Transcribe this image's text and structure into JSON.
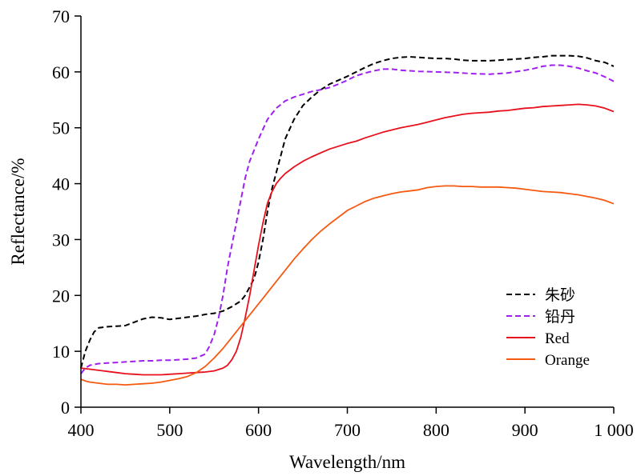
{
  "chart_data": {
    "type": "line",
    "title": "",
    "xlabel": "Wavelength/nm",
    "ylabel": "Reflectance/%",
    "xlim": [
      400,
      1000
    ],
    "ylim": [
      0,
      70
    ],
    "xticks": [
      400,
      500,
      600,
      700,
      800,
      900,
      1000
    ],
    "xtick_labels": [
      "400",
      "500",
      "600",
      "700",
      "800",
      "900",
      "1 000"
    ],
    "yticks": [
      0,
      10,
      20,
      30,
      40,
      50,
      60,
      70
    ],
    "ytick_labels": [
      "0",
      "10",
      "20",
      "30",
      "40",
      "50",
      "60",
      "70"
    ],
    "grid": false,
    "legend_position": "lower-right",
    "series": [
      {
        "name": "朱砂",
        "color": "#000000",
        "dash": "dashed",
        "x": [
          400,
          405,
          410,
          415,
          420,
          430,
          440,
          450,
          460,
          470,
          480,
          490,
          500,
          510,
          520,
          530,
          540,
          550,
          560,
          570,
          580,
          585,
          590,
          595,
          600,
          605,
          610,
          615,
          620,
          625,
          630,
          640,
          650,
          660,
          670,
          680,
          690,
          700,
          710,
          720,
          730,
          740,
          750,
          760,
          770,
          780,
          790,
          800,
          810,
          820,
          830,
          840,
          850,
          860,
          870,
          880,
          890,
          900,
          910,
          920,
          930,
          940,
          950,
          960,
          970,
          980,
          990,
          1000
        ],
        "y": [
          7,
          10,
          12,
          13.5,
          14.2,
          14.4,
          14.5,
          14.6,
          15.2,
          15.8,
          16.1,
          16,
          15.7,
          15.9,
          16.1,
          16.3,
          16.6,
          16.8,
          17.2,
          18,
          19,
          20,
          21.5,
          23,
          26,
          30,
          35,
          39,
          42,
          45,
          48,
          51.5,
          54,
          55.5,
          56.8,
          57.8,
          58.5,
          59.2,
          60,
          60.8,
          61.5,
          62,
          62.4,
          62.6,
          62.7,
          62.6,
          62.5,
          62.4,
          62.4,
          62.3,
          62.1,
          62,
          62,
          62,
          62.1,
          62.2,
          62.3,
          62.4,
          62.6,
          62.7,
          62.9,
          62.9,
          62.9,
          62.8,
          62.5,
          62,
          61.7,
          61
        ]
      },
      {
        "name": "铅丹",
        "color": "#a020f0",
        "dash": "dashed",
        "x": [
          400,
          405,
          410,
          420,
          430,
          440,
          450,
          460,
          470,
          480,
          490,
          500,
          510,
          520,
          530,
          540,
          545,
          550,
          555,
          560,
          565,
          570,
          575,
          580,
          585,
          590,
          600,
          610,
          620,
          630,
          640,
          650,
          660,
          670,
          680,
          690,
          700,
          710,
          720,
          730,
          740,
          750,
          760,
          780,
          800,
          820,
          840,
          860,
          880,
          900,
          910,
          920,
          930,
          940,
          950,
          960,
          970,
          980,
          990,
          1000
        ],
        "y": [
          6,
          7,
          7.5,
          7.8,
          7.9,
          8,
          8.1,
          8.2,
          8.3,
          8.3,
          8.4,
          8.4,
          8.5,
          8.6,
          8.8,
          9.5,
          11,
          13,
          16,
          20,
          25,
          29,
          33,
          37,
          41,
          44,
          48,
          51.5,
          53.5,
          54.8,
          55.5,
          56,
          56.5,
          56.8,
          57.2,
          57.8,
          58.5,
          59.3,
          59.8,
          60.2,
          60.5,
          60.5,
          60.3,
          60.1,
          60,
          59.9,
          59.7,
          59.6,
          59.8,
          60.3,
          60.6,
          61,
          61.2,
          61.2,
          61,
          60.7,
          60.2,
          59.8,
          59.1,
          58.3
        ]
      },
      {
        "name": "Red",
        "color": "#e8101c",
        "dash": "solid",
        "x": [
          400,
          410,
          420,
          430,
          440,
          450,
          460,
          470,
          480,
          490,
          500,
          510,
          520,
          530,
          540,
          550,
          560,
          565,
          570,
          575,
          580,
          585,
          590,
          595,
          600,
          605,
          610,
          615,
          620,
          625,
          630,
          640,
          650,
          660,
          670,
          680,
          690,
          700,
          710,
          720,
          730,
          740,
          750,
          760,
          770,
          780,
          790,
          800,
          810,
          820,
          830,
          840,
          850,
          860,
          870,
          880,
          890,
          900,
          910,
          920,
          930,
          940,
          950,
          960,
          970,
          980,
          990,
          1000
        ],
        "y": [
          7,
          6.8,
          6.6,
          6.4,
          6.2,
          6,
          5.9,
          5.8,
          5.8,
          5.8,
          5.9,
          6,
          6.1,
          6.2,
          6.3,
          6.5,
          7,
          7.5,
          8.5,
          10,
          12.5,
          16,
          20,
          24.5,
          29,
          33,
          36.5,
          38.5,
          40,
          41,
          41.8,
          43,
          44,
          44.8,
          45.5,
          46.2,
          46.7,
          47.2,
          47.6,
          48.2,
          48.7,
          49.2,
          49.6,
          50,
          50.3,
          50.6,
          51,
          51.4,
          51.8,
          52.1,
          52.4,
          52.6,
          52.7,
          52.8,
          53,
          53.1,
          53.3,
          53.5,
          53.6,
          53.8,
          53.9,
          54,
          54.1,
          54.2,
          54.1,
          53.9,
          53.5,
          52.9
        ]
      },
      {
        "name": "Orange",
        "color": "#f55a10",
        "dash": "solid",
        "x": [
          400,
          405,
          410,
          420,
          430,
          440,
          450,
          460,
          470,
          480,
          490,
          500,
          510,
          520,
          530,
          540,
          550,
          560,
          570,
          580,
          590,
          600,
          610,
          620,
          630,
          640,
          650,
          660,
          670,
          680,
          690,
          700,
          710,
          720,
          730,
          740,
          750,
          760,
          770,
          780,
          790,
          800,
          810,
          820,
          830,
          840,
          850,
          860,
          870,
          880,
          890,
          900,
          910,
          920,
          930,
          940,
          950,
          960,
          970,
          980,
          990,
          1000
        ],
        "y": [
          5,
          4.7,
          4.5,
          4.3,
          4.1,
          4.1,
          4,
          4.1,
          4.2,
          4.3,
          4.5,
          4.8,
          5.1,
          5.5,
          6.2,
          7.3,
          8.8,
          10.5,
          12.5,
          14.5,
          16.5,
          18.5,
          20.5,
          22.5,
          24.5,
          26.5,
          28.3,
          30,
          31.5,
          32.8,
          34,
          35.2,
          36,
          36.8,
          37.4,
          37.8,
          38.2,
          38.5,
          38.7,
          38.9,
          39.3,
          39.5,
          39.6,
          39.6,
          39.5,
          39.5,
          39.4,
          39.4,
          39.4,
          39.3,
          39.2,
          39,
          38.8,
          38.6,
          38.5,
          38.4,
          38.2,
          38,
          37.7,
          37.4,
          37,
          36.4
        ]
      }
    ]
  }
}
